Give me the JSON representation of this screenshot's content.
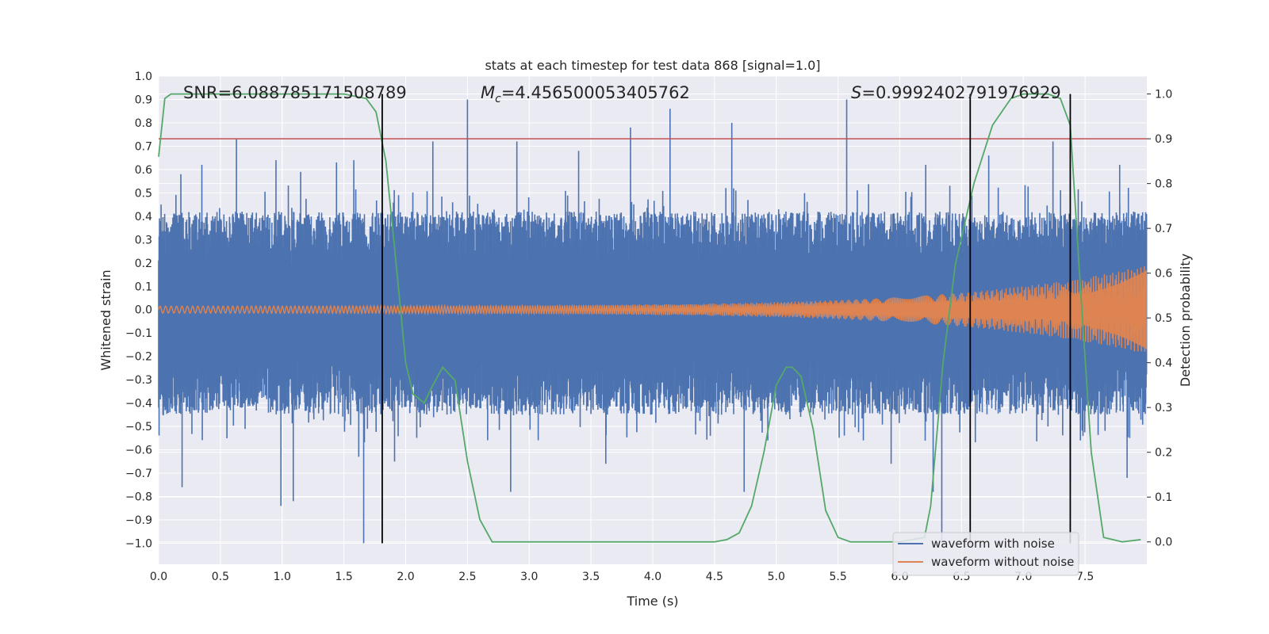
{
  "chart_data": {
    "type": "line",
    "title": "stats at each timestep for test data 868 [signal=1.0]",
    "xlabel": "Time (s)",
    "ylabel": "Whitened strain",
    "y2label": "Detection probability",
    "xlim": [
      0.0,
      8.0
    ],
    "ylim": [
      -1.09,
      1.0
    ],
    "y2lim": [
      -0.05,
      1.04
    ],
    "x_ticks": [
      "0.0",
      "0.5",
      "1.0",
      "1.5",
      "2.0",
      "2.5",
      "3.0",
      "3.5",
      "4.0",
      "4.5",
      "5.0",
      "5.5",
      "6.0",
      "6.5",
      "7.0",
      "7.5"
    ],
    "y_ticks": [
      "1.0",
      "0.9",
      "0.8",
      "0.7",
      "0.6",
      "0.5",
      "0.4",
      "0.3",
      "0.2",
      "0.1",
      "0.0",
      "−0.1",
      "−0.2",
      "−0.3",
      "−0.4",
      "−0.5",
      "−0.6",
      "−0.7",
      "−0.8",
      "−0.9",
      "−1.0"
    ],
    "y2_ticks": [
      "1.0",
      "0.9",
      "0.8",
      "0.7",
      "0.6",
      "0.5",
      "0.4",
      "0.3",
      "0.2",
      "0.1",
      "0.0"
    ],
    "grid": true,
    "legend_position": "lower-right",
    "annotations": {
      "snr": "SNR=6.088785171508789",
      "mc_symbol": "M",
      "mc_sub": "c",
      "mc_value": "=4.456500053405762",
      "s_symbol": "S",
      "s_value": "=0.9992402791976929"
    },
    "threshold": {
      "axis": "right",
      "value": 0.9,
      "color": "#c44e52"
    },
    "vertical_markers": [
      1.81,
      6.57,
      7.38
    ],
    "series": [
      {
        "name": "waveform with noise",
        "color": "#4c72b0",
        "axis": "left",
        "typical_envelope": [
          -0.45,
          0.42
        ],
        "spikes": [
          {
            "x": 0.02,
            "y": 0.45
          },
          {
            "x": 0.18,
            "y": 0.58
          },
          {
            "x": 0.35,
            "y": 0.62
          },
          {
            "x": 0.63,
            "y": 0.73
          },
          {
            "x": 0.95,
            "y": 0.64
          },
          {
            "x": 1.15,
            "y": 0.59
          },
          {
            "x": 1.44,
            "y": 0.63
          },
          {
            "x": 1.58,
            "y": 0.64
          },
          {
            "x": 2.22,
            "y": 0.72
          },
          {
            "x": 2.5,
            "y": 0.9
          },
          {
            "x": 2.9,
            "y": 0.72
          },
          {
            "x": 3.4,
            "y": 0.68
          },
          {
            "x": 3.82,
            "y": 0.78
          },
          {
            "x": 4.14,
            "y": 0.86
          },
          {
            "x": 4.64,
            "y": 0.8
          },
          {
            "x": 5.57,
            "y": 0.9
          },
          {
            "x": 6.21,
            "y": 0.62
          },
          {
            "x": 6.72,
            "y": 0.66
          },
          {
            "x": 7.24,
            "y": 0.72
          },
          {
            "x": 7.78,
            "y": 0.62
          },
          {
            "x": 0.19,
            "y": -0.76
          },
          {
            "x": 0.99,
            "y": -0.84
          },
          {
            "x": 1.09,
            "y": -0.82
          },
          {
            "x": 1.62,
            "y": -0.63
          },
          {
            "x": 1.66,
            "y": -1.0
          },
          {
            "x": 1.91,
            "y": -0.65
          },
          {
            "x": 2.85,
            "y": -0.78
          },
          {
            "x": 3.62,
            "y": -0.66
          },
          {
            "x": 4.74,
            "y": -0.78
          },
          {
            "x": 5.93,
            "y": -0.66
          },
          {
            "x": 6.27,
            "y": -0.78
          },
          {
            "x": 6.34,
            "y": -1.0
          },
          {
            "x": 7.38,
            "y": -0.74
          },
          {
            "x": 7.84,
            "y": -0.72
          }
        ]
      },
      {
        "name": "waveform without noise",
        "color": "#dd8452",
        "axis": "left",
        "amplitude_start": 0.015,
        "amplitude_end": 0.17,
        "chirp": true
      },
      {
        "name": "detection probability",
        "color": "#55a868",
        "axis": "right",
        "x": [
          0.0,
          0.05,
          0.1,
          0.2,
          0.5,
          1.0,
          1.5,
          1.68,
          1.76,
          1.84,
          1.93,
          2.0,
          2.06,
          2.15,
          2.22,
          2.3,
          2.4,
          2.5,
          2.6,
          2.7,
          3.0,
          3.5,
          4.0,
          4.5,
          4.6,
          4.7,
          4.8,
          4.9,
          5.0,
          5.08,
          5.13,
          5.2,
          5.3,
          5.4,
          5.5,
          5.6,
          6.0,
          6.2,
          6.25,
          6.35,
          6.45,
          6.6,
          6.75,
          6.9,
          7.0,
          7.2,
          7.3,
          7.38,
          7.45,
          7.55,
          7.65,
          7.8,
          7.95
        ],
        "y": [
          0.86,
          0.99,
          1.0,
          1.0,
          1.0,
          1.0,
          1.0,
          0.99,
          0.96,
          0.85,
          0.6,
          0.4,
          0.33,
          0.31,
          0.35,
          0.39,
          0.36,
          0.18,
          0.05,
          0.0,
          0.0,
          0.0,
          0.0,
          0.0,
          0.005,
          0.02,
          0.08,
          0.2,
          0.35,
          0.39,
          0.39,
          0.37,
          0.25,
          0.07,
          0.01,
          0.0,
          0.0,
          0.01,
          0.08,
          0.4,
          0.62,
          0.8,
          0.93,
          0.99,
          1.0,
          1.0,
          0.99,
          0.93,
          0.62,
          0.2,
          0.01,
          0.0,
          0.005
        ]
      }
    ]
  }
}
